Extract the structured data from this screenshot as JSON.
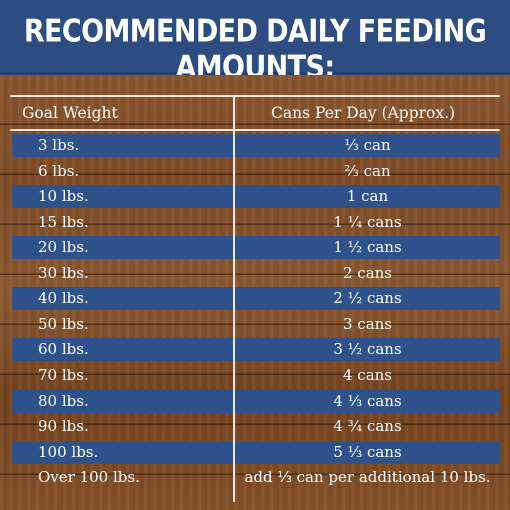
{
  "banner": {
    "title": "RECOMMENDED DAILY FEEDING AMOUNTS:"
  },
  "table": {
    "headers": [
      "Goal Weight",
      "Cans Per Day (Approx.)"
    ],
    "rows": [
      {
        "weight": "3 lbs.",
        "cans": "⅓ can",
        "shaded": true
      },
      {
        "weight": "6 lbs.",
        "cans": "⅔ can",
        "shaded": false
      },
      {
        "weight": "10 lbs.",
        "cans": "1 can",
        "shaded": true
      },
      {
        "weight": "15 lbs.",
        "cans": "1 ¼ cans",
        "shaded": false
      },
      {
        "weight": "20 lbs.",
        "cans": "1 ½ cans",
        "shaded": true
      },
      {
        "weight": "30 lbs.",
        "cans": "2 cans",
        "shaded": false
      },
      {
        "weight": "40 lbs.",
        "cans": "2 ½ cans",
        "shaded": true
      },
      {
        "weight": "50 lbs.",
        "cans": "3 cans",
        "shaded": false
      },
      {
        "weight": "60 lbs.",
        "cans": "3 ½ cans",
        "shaded": true
      },
      {
        "weight": "70 lbs.",
        "cans": "4 cans",
        "shaded": false
      },
      {
        "weight": "80 lbs.",
        "cans": "4 ⅓ cans",
        "shaded": true
      },
      {
        "weight": "90 lbs.",
        "cans": "4 ¾ cans",
        "shaded": false
      },
      {
        "weight": "100 lbs.",
        "cans": "5 ⅓ cans",
        "shaded": true
      },
      {
        "weight": "Over 100 lbs.",
        "cans": "add ⅓ can per additional 10 lbs.",
        "shaded": false
      }
    ]
  },
  "colors": {
    "banner": "#2c4c82",
    "row_shade": "#2f528c",
    "wood": "#7d4b27",
    "text": "#ffffff"
  }
}
